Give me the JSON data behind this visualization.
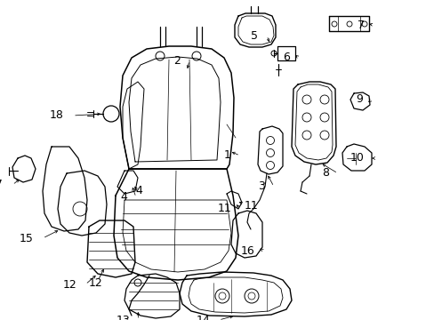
{
  "background_color": "#ffffff",
  "line_color": "#000000",
  "fig_width": 4.89,
  "fig_height": 3.6,
  "dpi": 100,
  "label_fs": 9,
  "lw": 0.8
}
